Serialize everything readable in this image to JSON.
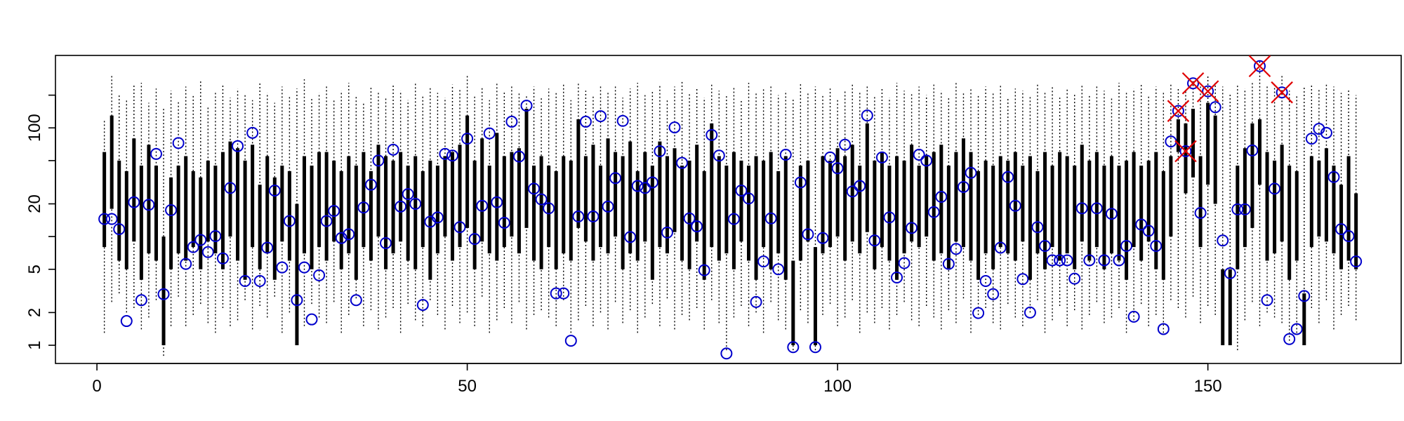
{
  "chart_data": {
    "type": "range",
    "log_y": true,
    "xlim": [
      -5.6,
      176.1
    ],
    "ylim": [
      0.68,
      464
    ],
    "xticks": [
      0,
      50,
      100,
      150
    ],
    "yticks": [
      1,
      2,
      5,
      20,
      100
    ],
    "y_minor_ticks": [
      10,
      50,
      200
    ],
    "line_color": "#000000",
    "point_color": "#0000cc",
    "flag_color": "#e00000",
    "x": [
      1,
      2,
      3,
      4,
      5,
      6,
      7,
      8,
      9,
      10,
      11,
      12,
      13,
      14,
      15,
      16,
      17,
      18,
      19,
      20,
      21,
      22,
      23,
      24,
      25,
      26,
      27,
      28,
      29,
      30,
      31,
      32,
      33,
      34,
      35,
      36,
      37,
      38,
      39,
      40,
      41,
      42,
      43,
      44,
      45,
      46,
      47,
      48,
      49,
      50,
      51,
      52,
      53,
      54,
      55,
      56,
      57,
      58,
      59,
      60,
      61,
      62,
      63,
      64,
      65,
      66,
      67,
      68,
      69,
      70,
      71,
      72,
      73,
      74,
      75,
      76,
      77,
      78,
      79,
      80,
      81,
      82,
      83,
      84,
      85,
      86,
      87,
      88,
      89,
      90,
      91,
      92,
      93,
      94,
      95,
      96,
      97,
      98,
      99,
      100,
      101,
      102,
      103,
      104,
      105,
      106,
      107,
      108,
      109,
      110,
      111,
      112,
      113,
      114,
      115,
      116,
      117,
      118,
      119,
      120,
      121,
      122,
      123,
      124,
      125,
      126,
      127,
      128,
      129,
      130,
      131,
      132,
      133,
      134,
      135,
      136,
      137,
      138,
      139,
      140,
      141,
      142,
      143,
      144,
      145,
      146,
      147,
      148,
      149,
      150,
      151,
      152,
      153,
      154,
      155,
      156,
      157,
      158,
      159,
      160,
      161,
      162,
      163,
      164,
      165,
      166,
      167,
      168,
      169,
      170
    ],
    "values": [
      14.5,
      14.5,
      11.7,
      1.67,
      20.7,
      2.6,
      19.6,
      57.6,
      2.95,
      17.5,
      72.5,
      5.6,
      8,
      9.3,
      7.2,
      10.1,
      6.3,
      28,
      68,
      3.9,
      90,
      3.9,
      7.9,
      26.5,
      5.2,
      13.9,
      2.6,
      5.2,
      1.73,
      4.4,
      13.9,
      17.2,
      9.7,
      10.5,
      2.6,
      18.5,
      30,
      50,
      8.7,
      63,
      18.9,
      24.6,
      20,
      2.35,
      13.7,
      15,
      57.6,
      55.6,
      12.2,
      79.6,
      9.5,
      19.2,
      89,
      20.7,
      13.4,
      114,
      54.5,
      160,
      27.6,
      22,
      18.2,
      3,
      3,
      1.1,
      15.3,
      114,
      15.3,
      128,
      18.9,
      34.5,
      116,
      9.9,
      29.2,
      28,
      31.5,
      61,
      10.9,
      101,
      47.6,
      14.7,
      12.4,
      4.9,
      86,
      55.6,
      0.84,
      14.5,
      26.5,
      22.4,
      2.5,
      5.9,
      14.7,
      5,
      56.6,
      0.96,
      31.5,
      10.5,
      0.96,
      9.7,
      53.5,
      42.5,
      70,
      26,
      29.2,
      130,
      9.2,
      53.5,
      15,
      4.2,
      5.7,
      12,
      56.6,
      50,
      16.8,
      23.2,
      5.6,
      7.7,
      28.6,
      38.6,
      1.98,
      3.9,
      2.95,
      7.9,
      35.3,
      19.2,
      4.06,
      2,
      12.2,
      8.2,
      6.05,
      6.05,
      6.05,
      4.1,
      18.2,
      6.05,
      18.2,
      6.05,
      16.2,
      6.05,
      8.2,
      1.83,
      12.9,
      11.3,
      8.2,
      1.41,
      75,
      143,
      61,
      257,
      16.5,
      217,
      155,
      9.2,
      4.6,
      17.8,
      17.8,
      62,
      370,
      2.6,
      27.6,
      212,
      1.14,
      1.41,
      2.84,
      79.6,
      98,
      90,
      35.3,
      11.7,
      10.1,
      5.9
    ],
    "whisker_low": [
      1.3,
      2.5,
      3,
      2,
      2.2,
      1.4,
      1.8,
      2.6,
      0.8,
      1.5,
      2.8,
      1.5,
      1.9,
      2.4,
      1.6,
      1.3,
      2.2,
      1.5,
      1.7,
      2.6,
      1.4,
      2.3,
      1.8,
      2.8,
      1.3,
      2,
      1,
      1.5,
      2.4,
      1.8,
      1.6,
      2.5,
      1.3,
      1.9,
      2.7,
      1.5,
      2.1,
      1.4,
      1.8,
      2.2,
      1.3,
      2.4,
      1.7,
      1.5,
      2.6,
      1.9,
      1.4,
      2.3,
      1.6,
      2,
      1.5,
      2.8,
      1.3,
      1.7,
      2.2,
      1.6,
      2.5,
      1.4,
      1.9,
      2.1,
      1.8,
      1.5,
      2.6,
      1.3,
      1.7,
      2.3,
      1.5,
      2,
      1.4,
      2.5,
      1.6,
      2.1,
      1.3,
      1.8,
      2.4,
      1.5,
      2.7,
      1.4,
      1.9,
      1.7,
      2.2,
      1.4,
      2.6,
      1.6,
      0.9,
      1.8,
      2.3,
      1.5,
      2,
      1.3,
      2.5,
      1.7,
      1.4,
      0.9,
      2.1,
      1.6,
      0.9,
      1.9,
      2.4,
      1.5,
      1.8,
      2.6,
      1.3,
      2,
      1.6,
      2.2,
      1.4,
      1.9,
      2.5,
      1.7,
      1.5,
      2.3,
      1.8,
      1.4,
      2.1,
      1.6,
      2.7,
      1.3,
      1.9,
      2.2,
      1.6,
      1.4,
      2.4,
      1.8,
      1.5,
      2,
      2.6,
      1.3,
      1.7,
      2.3,
      1.5,
      2.1,
      1.4,
      1.9,
      2.5,
      1.6,
      1.8,
      2.2,
      1.3,
      1.7,
      2.4,
      1.5,
      1.9,
      1.3,
      2.6,
      2.2,
      1.8,
      2.8,
      1.6,
      2.3,
      1.9,
      1.4,
      1,
      0.9,
      1.7,
      2.5,
      1.5,
      2,
      1.8,
      1.6,
      1.1,
      1.3,
      1,
      2.2,
      1.6,
      2.6,
      1.4,
      1.9,
      2.3,
      1.7
    ],
    "whisker_high": [
      120,
      300,
      200,
      180,
      250,
      260,
      170,
      230,
      150,
      220,
      180,
      240,
      200,
      270,
      160,
      210,
      250,
      190,
      230,
      200,
      180,
      260,
      210,
      170,
      240,
      200,
      230,
      280,
      190,
      210,
      250,
      180,
      220,
      260,
      200,
      170,
      240,
      210,
      190,
      250,
      220,
      180,
      260,
      200,
      240,
      210,
      190,
      250,
      230,
      300,
      200,
      240,
      180,
      260,
      220,
      250,
      210,
      200,
      240,
      190,
      230,
      210,
      250,
      180,
      260,
      220,
      200,
      240,
      210,
      250,
      190,
      230,
      260,
      200,
      220,
      250,
      180,
      240,
      270,
      210,
      230,
      190,
      250,
      220,
      200,
      240,
      180,
      260,
      210,
      230,
      250,
      200,
      220,
      190,
      260,
      210,
      240,
      200,
      230,
      180,
      220,
      250,
      210,
      240,
      200,
      230,
      190,
      260,
      220,
      210,
      240,
      200,
      250,
      220,
      190,
      260,
      210,
      230,
      200,
      240,
      210,
      250,
      190,
      230,
      220,
      200,
      260,
      210,
      240,
      190,
      230,
      210,
      250,
      200,
      240,
      220,
      190,
      260,
      210,
      230,
      250,
      200,
      240,
      210,
      260,
      230,
      220,
      280,
      250,
      300,
      260,
      240,
      210,
      250,
      230,
      270,
      420,
      240,
      250,
      300,
      220,
      200,
      240,
      250,
      230,
      260,
      240,
      210,
      230,
      200
    ],
    "box_low": [
      8,
      18,
      6,
      5,
      9,
      4,
      7,
      6,
      1,
      5,
      7,
      6,
      8,
      5,
      9,
      7,
      5,
      10,
      6,
      4,
      8,
      5,
      7,
      4,
      9,
      6,
      1,
      7,
      5,
      8,
      6,
      9,
      5,
      7,
      4,
      8,
      6,
      10,
      5,
      7,
      9,
      6,
      5,
      8,
      4,
      7,
      10,
      6,
      8,
      12,
      5,
      9,
      7,
      6,
      8,
      10,
      7,
      12,
      6,
      5,
      8,
      5,
      7,
      6,
      12,
      9,
      6,
      8,
      7,
      10,
      5,
      7,
      6,
      9,
      4,
      8,
      7,
      11,
      6,
      5,
      9,
      4,
      8,
      6,
      7,
      5,
      9,
      6,
      4,
      8,
      5,
      7,
      4,
      1,
      6,
      9,
      1,
      7,
      8,
      10,
      6,
      9,
      7,
      11,
      5,
      8,
      6,
      4,
      7,
      9,
      8,
      10,
      6,
      7,
      5,
      9,
      8,
      6,
      4,
      7,
      5,
      8,
      7,
      6,
      9,
      4,
      7,
      5,
      8,
      6,
      7,
      5,
      9,
      6,
      8,
      5,
      7,
      6,
      4,
      8,
      6,
      9,
      5,
      4,
      10,
      60,
      25,
      35,
      8,
      30,
      20,
      1,
      1,
      5,
      8,
      12,
      30,
      6,
      7,
      9,
      4,
      6,
      1,
      8,
      10,
      9,
      7,
      5,
      6,
      5
    ],
    "box_high": [
      60,
      130,
      50,
      40,
      80,
      45,
      70,
      45,
      10,
      35,
      45,
      55,
      40,
      35,
      50,
      45,
      60,
      75,
      65,
      50,
      70,
      30,
      55,
      35,
      45,
      40,
      20,
      55,
      45,
      60,
      60,
      50,
      40,
      55,
      45,
      60,
      40,
      70,
      55,
      50,
      60,
      45,
      55,
      40,
      50,
      45,
      55,
      60,
      70,
      130,
      50,
      80,
      45,
      90,
      55,
      60,
      65,
      150,
      45,
      55,
      45,
      40,
      55,
      50,
      120,
      55,
      70,
      45,
      80,
      60,
      55,
      75,
      40,
      60,
      45,
      75,
      55,
      65,
      45,
      50,
      70,
      40,
      110,
      55,
      45,
      60,
      50,
      45,
      55,
      50,
      60,
      40,
      55,
      6,
      45,
      50,
      8,
      55,
      50,
      65,
      55,
      70,
      45,
      110,
      50,
      60,
      45,
      55,
      50,
      70,
      45,
      55,
      60,
      70,
      45,
      60,
      80,
      60,
      40,
      50,
      45,
      55,
      50,
      60,
      45,
      55,
      40,
      60,
      45,
      60,
      55,
      45,
      70,
      50,
      60,
      45,
      55,
      45,
      50,
      60,
      45,
      50,
      60,
      40,
      55,
      120,
      110,
      150,
      55,
      170,
      130,
      5,
      5,
      45,
      65,
      110,
      120,
      60,
      50,
      70,
      45,
      40,
      3,
      55,
      50,
      65,
      45,
      30,
      55,
      25
    ],
    "flagged_x": [
      146,
      147,
      148,
      150,
      157,
      160
    ]
  }
}
